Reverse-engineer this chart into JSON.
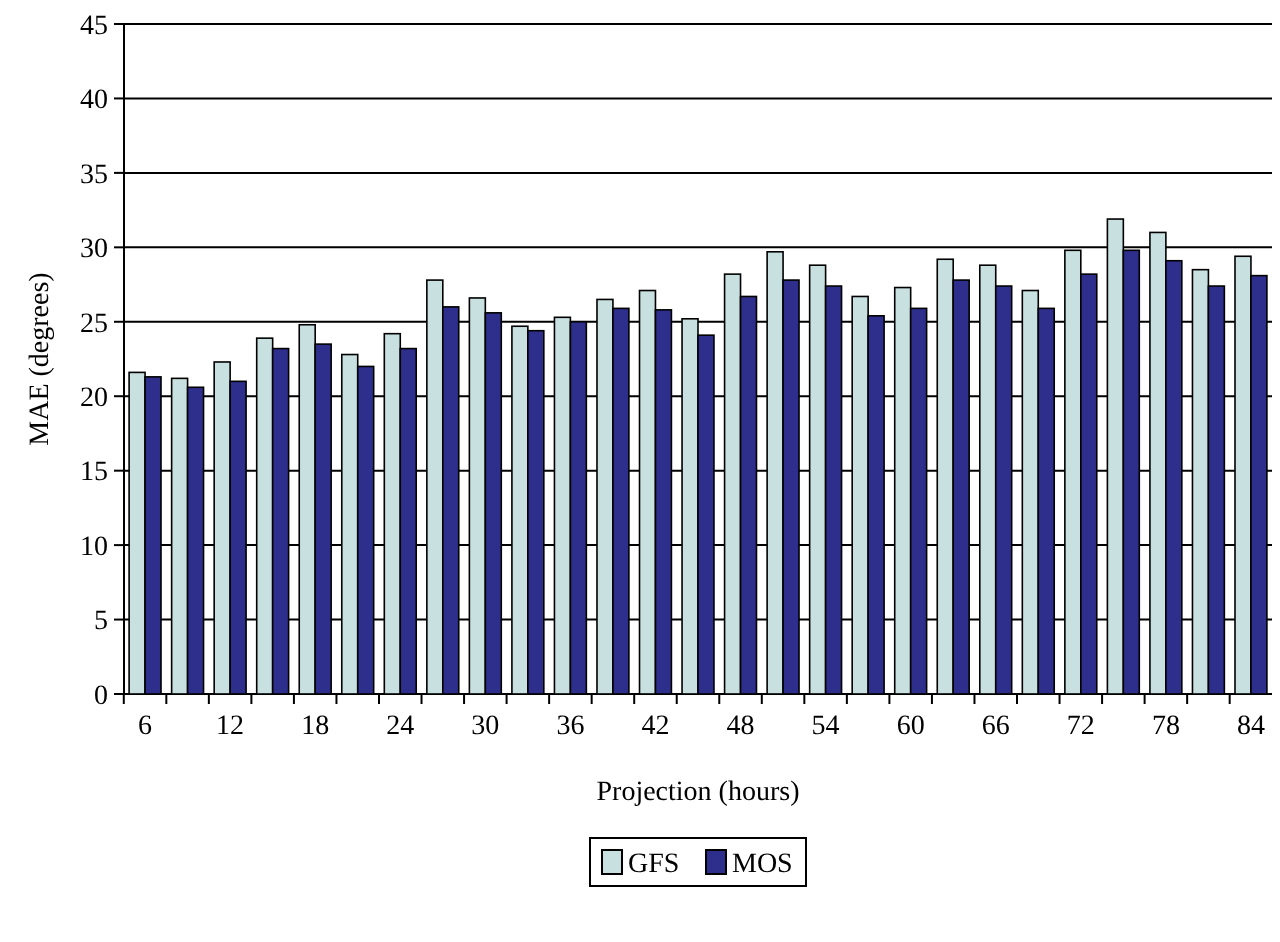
{
  "chart_data": {
    "type": "bar",
    "xlabel": "Projection (hours)",
    "ylabel": "MAE (degrees)",
    "categories": [
      "6",
      null,
      "12",
      null,
      "18",
      null,
      "24",
      null,
      "30",
      null,
      "36",
      null,
      "42",
      null,
      "48",
      null,
      "54",
      null,
      "60",
      null,
      "66",
      null,
      "72",
      null,
      "78",
      null,
      "84"
    ],
    "series": [
      {
        "name": "GFS",
        "color": "#c8e0e0",
        "values": [
          21.6,
          21.2,
          22.3,
          23.9,
          24.8,
          22.8,
          24.2,
          27.8,
          26.6,
          24.7,
          25.3,
          26.5,
          27.1,
          25.2,
          28.2,
          29.7,
          28.8,
          26.7,
          27.3,
          29.2,
          28.8,
          27.1,
          29.8,
          31.9,
          31.0,
          28.5,
          29.4
        ]
      },
      {
        "name": "MOS",
        "color": "#2e2e8c",
        "values": [
          21.3,
          20.6,
          21.0,
          23.2,
          23.5,
          22.0,
          23.2,
          26.0,
          25.6,
          24.4,
          25.0,
          25.9,
          25.8,
          24.1,
          26.7,
          27.8,
          27.4,
          25.4,
          25.9,
          27.8,
          27.4,
          25.9,
          28.2,
          29.8,
          29.1,
          27.4,
          28.1
        ]
      }
    ],
    "ylim": [
      0,
      45
    ],
    "yticks": [
      0,
      5,
      10,
      15,
      20,
      25,
      30,
      35,
      40,
      45
    ],
    "grid": "y",
    "legend": "bottom"
  }
}
